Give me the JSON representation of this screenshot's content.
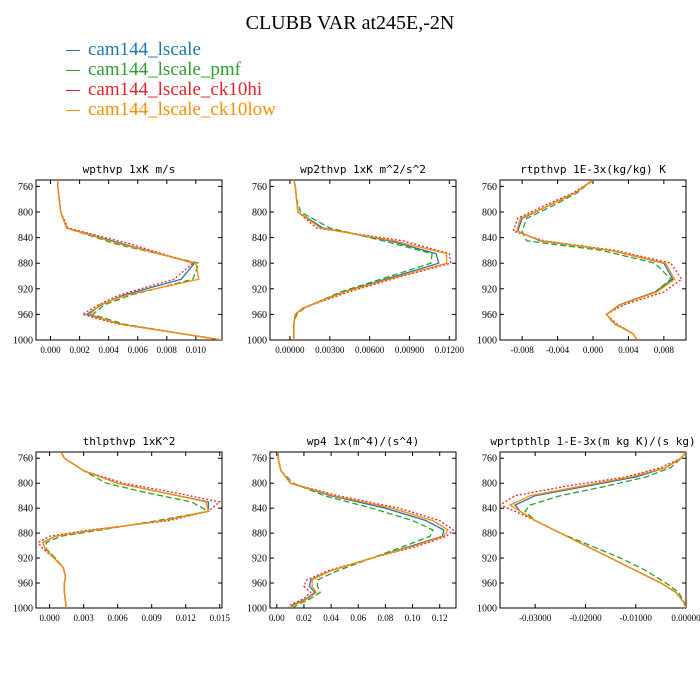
{
  "figure": {
    "title": "CLUBB VAR at245E,-2N",
    "colors": {
      "cam144_lscale": "#1f77b4",
      "cam144_lscale_pmf": "#2ca02c",
      "cam144_lscale_ck10hi": "#e8222a",
      "cam144_lscale_ck10low": "#ff8c00"
    },
    "legend": [
      {
        "label": "cam144_lscale",
        "color": "#1f77b4"
      },
      {
        "label": "cam144_lscale_pmf",
        "color": "#2ca02c"
      },
      {
        "label": "cam144_lscale_ck10hi",
        "color": "#e8222a"
      },
      {
        "label": "cam144_lscale_ck10low",
        "color": "#ff8c00"
      }
    ]
  },
  "chart_data": [
    {
      "type": "line",
      "title": "wpthvp  1xK m/s",
      "xlim": [
        -0.001,
        0.0118
      ],
      "ylim": [
        1000,
        750
      ],
      "y_inverted": true,
      "xticks": [
        "0.000",
        "0.002",
        "0.004",
        "0.006",
        "0.008",
        "0.010"
      ],
      "xtick_values": [
        0.0,
        0.002,
        0.004,
        0.006,
        0.008,
        0.01
      ],
      "yticks": [
        760,
        800,
        840,
        880,
        920,
        960,
        1000
      ],
      "y": [
        750,
        760,
        780,
        800,
        825,
        850,
        880,
        905,
        930,
        945,
        960,
        975,
        990,
        1000
      ],
      "series": [
        {
          "name": "cam144_lscale",
          "x": [
            0.0005,
            0.0005,
            0.0006,
            0.0007,
            0.0011,
            0.005,
            0.0099,
            0.009,
            0.005,
            0.0035,
            0.0025,
            0.0048,
            0.009,
            0.0118
          ]
        },
        {
          "name": "cam144_lscale_pmf",
          "x": [
            0.0005,
            0.0005,
            0.0006,
            0.0007,
            0.0011,
            0.0045,
            0.0102,
            0.0098,
            0.0055,
            0.0037,
            0.0029,
            0.005,
            0.009,
            0.0118
          ]
        },
        {
          "name": "cam144_lscale_ck10hi",
          "x": [
            0.0005,
            0.0005,
            0.0006,
            0.0007,
            0.0012,
            0.0055,
            0.0098,
            0.0085,
            0.0047,
            0.0033,
            0.0022,
            0.0046,
            0.009,
            0.0118
          ]
        },
        {
          "name": "cam144_lscale_ck10low",
          "x": [
            0.0005,
            0.0005,
            0.0006,
            0.0007,
            0.0011,
            0.0048,
            0.01,
            0.0102,
            0.0052,
            0.0034,
            0.0027,
            0.0047,
            0.009,
            0.0118
          ]
        }
      ]
    },
    {
      "type": "line",
      "title": "wp2thvp  1xK m^2/s^2",
      "xlim": [
        -0.0015,
        0.0125
      ],
      "ylim": [
        1000,
        750
      ],
      "y_inverted": true,
      "xticks": [
        "0.00000",
        "0.00300",
        "0.00600",
        "0.00900",
        "0.01200"
      ],
      "xtick_values": [
        0.0,
        0.003,
        0.006,
        0.009,
        0.012
      ],
      "yticks": [
        760,
        800,
        840,
        880,
        920,
        960,
        1000
      ],
      "y": [
        750,
        760,
        780,
        800,
        825,
        845,
        865,
        880,
        900,
        925,
        950,
        960,
        975,
        990,
        1000
      ],
      "series": [
        {
          "name": "cam144_lscale",
          "x": [
            0.0003,
            0.0004,
            0.0005,
            0.0006,
            0.0025,
            0.0075,
            0.011,
            0.0112,
            0.008,
            0.004,
            0.001,
            0.0004,
            0.0003,
            0.0003,
            0.0003
          ]
        },
        {
          "name": "cam144_lscale_pmf",
          "x": [
            0.0003,
            0.0004,
            0.0005,
            0.0008,
            0.003,
            0.007,
            0.0107,
            0.0106,
            0.0076,
            0.0038,
            0.0011,
            0.0005,
            0.0003,
            0.0003,
            0.0003
          ]
        },
        {
          "name": "cam144_lscale_ck10hi",
          "x": [
            0.0003,
            0.0004,
            0.0005,
            0.0006,
            0.002,
            0.0085,
            0.012,
            0.0121,
            0.0085,
            0.0044,
            0.001,
            0.0004,
            0.0003,
            0.0003,
            0.0003
          ]
        },
        {
          "name": "cam144_lscale_ck10low",
          "x": [
            0.0003,
            0.0004,
            0.0005,
            0.0006,
            0.0023,
            0.0078,
            0.0118,
            0.0118,
            0.0083,
            0.0041,
            0.001,
            0.0004,
            0.0003,
            0.0003,
            0.0003
          ]
        }
      ]
    },
    {
      "type": "line",
      "title": "rtpthvp  1E-3x(kg/kg) K",
      "xlim": [
        -0.0105,
        0.0105
      ],
      "ylim": [
        1000,
        750
      ],
      "y_inverted": true,
      "xticks": [
        "-0.008",
        "-0.004",
        "0.000",
        "0.004",
        "0.008"
      ],
      "xtick_values": [
        -0.008,
        -0.004,
        0.0,
        0.004,
        0.008
      ],
      "yticks": [
        760,
        800,
        840,
        880,
        920,
        960,
        1000
      ],
      "y": [
        750,
        770,
        790,
        810,
        830,
        845,
        860,
        880,
        905,
        925,
        945,
        960,
        975,
        990,
        1000
      ],
      "series": [
        {
          "name": "cam144_lscale",
          "x": [
            0.0,
            -0.002,
            -0.005,
            -0.008,
            -0.0085,
            -0.006,
            0.002,
            0.008,
            0.009,
            0.007,
            0.003,
            0.0015,
            0.0025,
            0.0045,
            0.005
          ]
        },
        {
          "name": "cam144_lscale_pmf",
          "x": [
            0.0,
            -0.0018,
            -0.0045,
            -0.0075,
            -0.008,
            -0.0075,
            0.001,
            0.007,
            0.0088,
            0.007,
            0.003,
            0.0015,
            0.0024,
            0.0045,
            0.005
          ]
        },
        {
          "name": "cam144_lscale_ck10hi",
          "x": [
            0.0,
            -0.0022,
            -0.0055,
            -0.0085,
            -0.009,
            -0.0055,
            0.0025,
            0.0088,
            0.01,
            0.008,
            0.0035,
            0.0015,
            0.0027,
            0.0045,
            0.005
          ]
        },
        {
          "name": "cam144_lscale_ck10low",
          "x": [
            0.0,
            -0.002,
            -0.005,
            -0.0082,
            -0.0086,
            -0.0058,
            0.002,
            0.0082,
            0.0092,
            0.0072,
            0.0031,
            0.0015,
            0.0025,
            0.0045,
            0.005
          ]
        }
      ]
    },
    {
      "type": "line",
      "title": "thlpthvp  1xK^2",
      "xlim": [
        -0.0012,
        0.0152
      ],
      "ylim": [
        1000,
        750
      ],
      "y_inverted": true,
      "xticks": [
        "0.000",
        "0.003",
        "0.006",
        "0.009",
        "0.012",
        "0.015"
      ],
      "xtick_values": [
        0.0,
        0.003,
        0.006,
        0.009,
        0.012,
        0.015
      ],
      "yticks": [
        760,
        800,
        840,
        880,
        920,
        960,
        1000
      ],
      "y": [
        750,
        760,
        780,
        800,
        815,
        830,
        845,
        860,
        875,
        885,
        895,
        905,
        920,
        935,
        950,
        960,
        975,
        990,
        1000
      ],
      "series": [
        {
          "name": "cam144_lscale",
          "x": [
            0.001,
            0.0013,
            0.003,
            0.006,
            0.01,
            0.014,
            0.014,
            0.01,
            0.004,
            0.0005,
            -0.0006,
            -0.0004,
            0.0004,
            0.0012,
            0.0014,
            0.0013,
            0.0013,
            0.0014,
            0.0015
          ]
        },
        {
          "name": "cam144_lscale_pmf",
          "x": [
            0.001,
            0.0013,
            0.003,
            0.005,
            0.0085,
            0.0125,
            0.014,
            0.0095,
            0.0045,
            0.001,
            -0.0003,
            -0.0003,
            0.0005,
            0.0012,
            0.0014,
            0.0013,
            0.0013,
            0.0014,
            0.0015
          ]
        },
        {
          "name": "cam144_lscale_ck10hi",
          "x": [
            0.001,
            0.0013,
            0.003,
            0.0065,
            0.011,
            0.015,
            0.014,
            0.0105,
            0.0035,
            0.0,
            -0.001,
            -0.0006,
            0.0004,
            0.0012,
            0.0014,
            0.0013,
            0.0013,
            0.0014,
            0.0015
          ]
        },
        {
          "name": "cam144_lscale_ck10low",
          "x": [
            0.001,
            0.0013,
            0.003,
            0.006,
            0.01,
            0.0138,
            0.014,
            0.01,
            0.004,
            0.0005,
            -0.0006,
            -0.0004,
            0.0004,
            0.0012,
            0.0014,
            0.0013,
            0.0013,
            0.0014,
            0.0015
          ]
        }
      ]
    },
    {
      "type": "line",
      "title": "wp4  1x(m^4)/(s^4)",
      "xlim": [
        -0.005,
        0.132
      ],
      "ylim": [
        1000,
        750
      ],
      "y_inverted": true,
      "xticks": [
        "0.00",
        "0.02",
        "0.04",
        "0.06",
        "0.08",
        "0.10",
        "0.12"
      ],
      "xtick_values": [
        0.0,
        0.02,
        0.04,
        0.06,
        0.08,
        0.1,
        0.12
      ],
      "yticks": [
        760,
        800,
        840,
        880,
        920,
        960,
        1000
      ],
      "y": [
        750,
        760,
        780,
        800,
        820,
        840,
        860,
        875,
        885,
        900,
        920,
        940,
        955,
        965,
        975,
        985,
        995,
        1000
      ],
      "series": [
        {
          "name": "cam144_lscale",
          "x": [
            0.001,
            0.001,
            0.003,
            0.01,
            0.04,
            0.08,
            0.11,
            0.123,
            0.122,
            0.1,
            0.07,
            0.04,
            0.025,
            0.024,
            0.028,
            0.022,
            0.012,
            0.01
          ]
        },
        {
          "name": "cam144_lscale_pmf",
          "x": [
            0.001,
            0.001,
            0.003,
            0.012,
            0.035,
            0.07,
            0.1,
            0.115,
            0.113,
            0.095,
            0.07,
            0.045,
            0.03,
            0.03,
            0.032,
            0.025,
            0.015,
            0.012
          ]
        },
        {
          "name": "cam144_lscale_ck10hi",
          "x": [
            0.001,
            0.001,
            0.003,
            0.01,
            0.045,
            0.09,
            0.12,
            0.13,
            0.125,
            0.105,
            0.07,
            0.038,
            0.022,
            0.02,
            0.025,
            0.02,
            0.01,
            0.008
          ]
        },
        {
          "name": "cam144_lscale_ck10low",
          "x": [
            0.001,
            0.001,
            0.003,
            0.01,
            0.042,
            0.085,
            0.115,
            0.126,
            0.123,
            0.102,
            0.07,
            0.04,
            0.026,
            0.026,
            0.029,
            0.023,
            0.013,
            0.011
          ]
        }
      ]
    },
    {
      "type": "line",
      "title": "wprtpthlp  1-E-3x(m kg K)/(s kg)",
      "xlim": [
        -0.037,
        0.0
      ],
      "ylim": [
        1000,
        750
      ],
      "y_inverted": true,
      "xticks": [
        "-0.03000",
        "-0.02000",
        "-0.01000",
        "0.00000"
      ],
      "xtick_values": [
        -0.03,
        -0.02,
        -0.01,
        0.0
      ],
      "yticks": [
        760,
        800,
        840,
        880,
        920,
        960,
        1000
      ],
      "y": [
        750,
        760,
        775,
        790,
        805,
        820,
        835,
        845,
        860,
        880,
        900,
        920,
        940,
        960,
        975,
        990,
        1000
      ],
      "series": [
        {
          "name": "cam144_lscale",
          "x": [
            0.0,
            -0.001,
            -0.004,
            -0.01,
            -0.02,
            -0.03,
            -0.034,
            -0.033,
            -0.03,
            -0.025,
            -0.02,
            -0.015,
            -0.01,
            -0.005,
            -0.002,
            -0.0005,
            0.0
          ]
        },
        {
          "name": "cam144_lscale_pmf",
          "x": [
            0.0,
            -0.001,
            -0.003,
            -0.008,
            -0.016,
            -0.025,
            -0.031,
            -0.032,
            -0.03,
            -0.025,
            -0.019,
            -0.013,
            -0.008,
            -0.004,
            -0.0015,
            -0.0004,
            0.0
          ]
        },
        {
          "name": "cam144_lscale_ck10hi",
          "x": [
            0.0,
            -0.001,
            -0.005,
            -0.012,
            -0.024,
            -0.034,
            -0.037,
            -0.034,
            -0.03,
            -0.025,
            -0.02,
            -0.015,
            -0.01,
            -0.005,
            -0.002,
            -0.0005,
            0.0
          ]
        },
        {
          "name": "cam144_lscale_ck10low",
          "x": [
            0.0,
            -0.001,
            -0.004,
            -0.011,
            -0.021,
            -0.031,
            -0.035,
            -0.033,
            -0.03,
            -0.025,
            -0.02,
            -0.015,
            -0.01,
            -0.005,
            -0.002,
            -0.0005,
            0.0
          ]
        }
      ]
    }
  ]
}
